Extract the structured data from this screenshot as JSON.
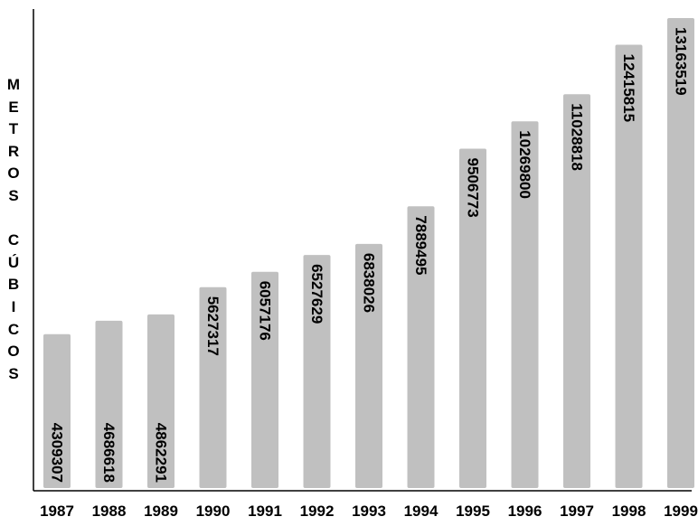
{
  "chart_data": {
    "type": "bar",
    "title": "",
    "xlabel": "",
    "ylabel": "METROS CÚBICOS",
    "ylabel_lines": [
      "M",
      "E",
      "T",
      "R",
      "O",
      "S",
      "",
      "C",
      "Ú",
      "B",
      "I",
      "C",
      "O",
      "S"
    ],
    "categories": [
      "1987",
      "1988",
      "1989",
      "1990",
      "1991",
      "1992",
      "1993",
      "1994",
      "1995",
      "1996",
      "1997",
      "1998",
      "1999"
    ],
    "values": [
      4309307,
      4686618,
      4862291,
      5627317,
      6057176,
      6527629,
      6838026,
      7889495,
      9506773,
      10269800,
      11028818,
      12415815,
      13163519
    ],
    "value_labels": [
      "4309307",
      "4686618",
      "4862291",
      "5627317",
      "6057176",
      "6527629",
      "6838026",
      "7889495",
      "9506773",
      "10269800",
      "11028818",
      "12415815",
      "13163519"
    ],
    "ylim": [
      0,
      13500000
    ],
    "grid": false,
    "legend": "none",
    "bar_color": "#c0c0c0",
    "axis_color": "#000000"
  }
}
